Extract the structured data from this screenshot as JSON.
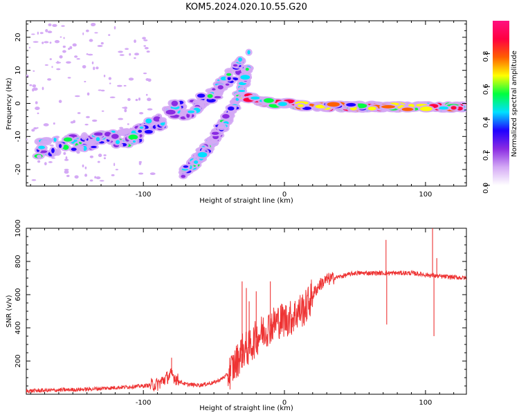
{
  "figure_title": "KOM5.2024.020.10.55.G20",
  "chart_data": [
    {
      "type": "heatmap",
      "title": "",
      "xlabel": "Height of straight line (km)",
      "ylabel": "Frequency (Hz)",
      "xlim": [
        -183,
        129
      ],
      "ylim": [
        -25,
        25
      ],
      "xticks": [
        -100,
        0,
        100
      ],
      "xtick_labels": [
        "-100",
        "0",
        "100"
      ],
      "yticks": [
        20,
        10,
        0,
        -10,
        -20
      ],
      "ytick_labels": [
        "20",
        "10",
        "0",
        "-10",
        "-20"
      ],
      "colorbar": {
        "label": "Normalized spectral amplitude",
        "range": [
          0,
          1
        ],
        "ticks": [
          0.0,
          0.2,
          0.4,
          0.6,
          0.8
        ],
        "tick_labels": [
          "0.0",
          "0.2",
          "0.4",
          "0.6",
          "0.8"
        ],
        "colors": [
          "#ffffff",
          "#d4a9f5",
          "#8a2be2",
          "#2000ff",
          "#00e0ff",
          "#00ff40",
          "#ffff00",
          "#ff6000",
          "#ff0040",
          "#ff1080"
        ]
      },
      "features": [
        {
          "name": "descending branch",
          "points": [
            [
              -175,
              -14
            ],
            [
              -150,
              -12
            ],
            [
              -125,
              -11
            ],
            [
              -105,
              -10
            ],
            [
              -90,
              -6
            ],
            [
              -80,
              -2
            ],
            [
              -68,
              -2
            ],
            [
              -55,
              2
            ],
            [
              -42,
              6
            ],
            [
              -30,
              12
            ]
          ]
        },
        {
          "name": "ascending branch",
          "points": [
            [
              -72,
              -21
            ],
            [
              -62,
              -17
            ],
            [
              -52,
              -12
            ],
            [
              -43,
              -6
            ],
            [
              -36,
              -1
            ],
            [
              -30,
              5
            ],
            [
              -26,
              10
            ],
            [
              -25,
              17
            ]
          ]
        },
        {
          "name": "horizontal line",
          "points": [
            [
              -28,
              2
            ],
            [
              -10,
              0
            ],
            [
              0,
              0
            ],
            [
              20,
              -1
            ],
            [
              50,
              -1
            ],
            [
              80,
              -1
            ],
            [
              100,
              -1
            ],
            [
              129,
              -1
            ]
          ]
        }
      ]
    },
    {
      "type": "line",
      "title": "",
      "xlabel": "Height of straight line (km)",
      "ylabel": "SNR (v/v)",
      "xlim": [
        -183,
        129
      ],
      "ylim": [
        0,
        1000
      ],
      "xticks": [
        -100,
        0,
        100
      ],
      "xtick_labels": [
        "-100",
        "0",
        "100"
      ],
      "yticks": [
        200,
        400,
        600,
        800,
        1000
      ],
      "ytick_labels": [
        "200",
        "400",
        "600",
        "800",
        "1000"
      ],
      "series_color": "#ee3333",
      "series": [
        {
          "x": [
            -183,
            -160,
            -140,
            -120,
            -100,
            -90,
            -85,
            -80,
            -75,
            -70,
            -60,
            -50,
            -45,
            -40,
            -35,
            -30,
            -25,
            -20,
            -15,
            -10,
            -5,
            0,
            5,
            10,
            15,
            20,
            25,
            30,
            40,
            50,
            60,
            70,
            80,
            90,
            100,
            110,
            120,
            129
          ],
          "values": [
            20,
            25,
            30,
            40,
            50,
            60,
            90,
            120,
            80,
            60,
            55,
            70,
            90,
            120,
            180,
            260,
            280,
            340,
            380,
            410,
            440,
            450,
            460,
            500,
            520,
            600,
            660,
            690,
            710,
            730,
            730,
            730,
            730,
            730,
            720,
            710,
            705,
            700
          ]
        }
      ],
      "spikes": [
        {
          "x": -80,
          "value": 220
        },
        {
          "x": -30,
          "value": 680
        },
        {
          "x": -27,
          "value": 640
        },
        {
          "x": -25,
          "value": 560
        },
        {
          "x": -20,
          "value": 620
        },
        {
          "x": -10,
          "value": 680
        },
        {
          "x": 72,
          "value": 930
        },
        {
          "x": 72.5,
          "value": 420
        },
        {
          "x": 105,
          "value": 1000
        },
        {
          "x": 106,
          "value": 350
        },
        {
          "x": 108,
          "value": 820
        }
      ]
    }
  ]
}
